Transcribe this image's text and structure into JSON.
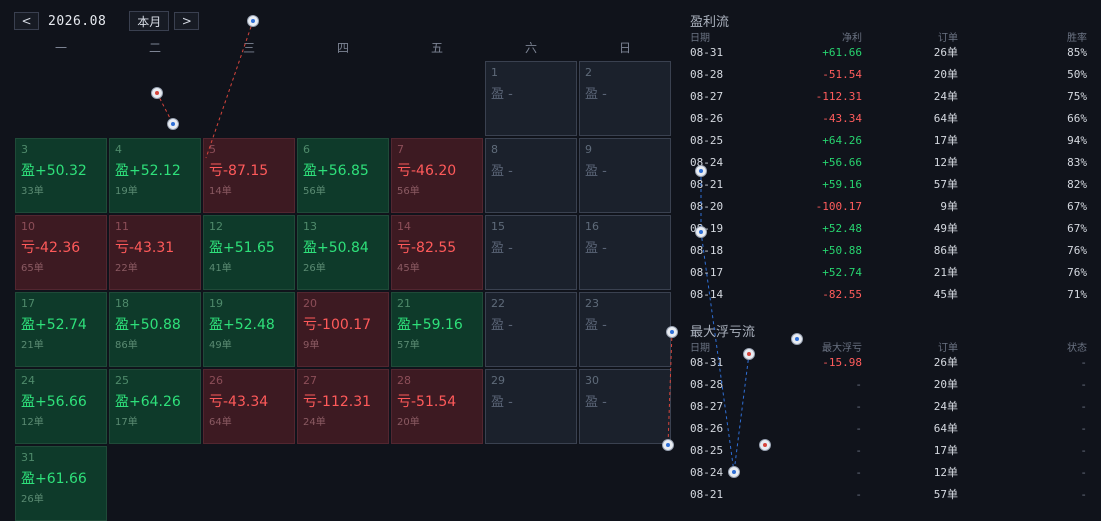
{
  "nav": {
    "prev": "<",
    "next": ">",
    "month": "2026.08",
    "today": "本月"
  },
  "weekdays": [
    "一",
    "二",
    "三",
    "四",
    "五",
    "六",
    "日"
  ],
  "cells": [
    {
      "day": "",
      "pnl": "",
      "orders": "",
      "type": "blank"
    },
    {
      "day": "",
      "pnl": "",
      "orders": "",
      "type": "blank"
    },
    {
      "day": "",
      "pnl": "",
      "orders": "",
      "type": "blank"
    },
    {
      "day": "",
      "pnl": "",
      "orders": "",
      "type": "blank"
    },
    {
      "day": "",
      "pnl": "",
      "orders": "",
      "type": "blank"
    },
    {
      "day": "1",
      "pnl": "盈 -",
      "orders": "",
      "type": "empty"
    },
    {
      "day": "2",
      "pnl": "盈 -",
      "orders": "",
      "type": "empty"
    },
    {
      "day": "3",
      "pnl": "盈+50.32",
      "orders": "33单",
      "type": "win"
    },
    {
      "day": "4",
      "pnl": "盈+52.12",
      "orders": "19单",
      "type": "win"
    },
    {
      "day": "5",
      "pnl": "亏-87.15",
      "orders": "14单",
      "type": "loss"
    },
    {
      "day": "6",
      "pnl": "盈+56.85",
      "orders": "56单",
      "type": "win"
    },
    {
      "day": "7",
      "pnl": "亏-46.20",
      "orders": "56单",
      "type": "loss"
    },
    {
      "day": "8",
      "pnl": "盈 -",
      "orders": "",
      "type": "empty"
    },
    {
      "day": "9",
      "pnl": "盈 -",
      "orders": "",
      "type": "empty"
    },
    {
      "day": "10",
      "pnl": "亏-42.36",
      "orders": "65单",
      "type": "loss"
    },
    {
      "day": "11",
      "pnl": "亏-43.31",
      "orders": "22单",
      "type": "loss"
    },
    {
      "day": "12",
      "pnl": "盈+51.65",
      "orders": "41单",
      "type": "win"
    },
    {
      "day": "13",
      "pnl": "盈+50.84",
      "orders": "26单",
      "type": "win"
    },
    {
      "day": "14",
      "pnl": "亏-82.55",
      "orders": "45单",
      "type": "loss"
    },
    {
      "day": "15",
      "pnl": "盈 -",
      "orders": "",
      "type": "empty"
    },
    {
      "day": "16",
      "pnl": "盈 -",
      "orders": "",
      "type": "empty"
    },
    {
      "day": "17",
      "pnl": "盈+52.74",
      "orders": "21单",
      "type": "win"
    },
    {
      "day": "18",
      "pnl": "盈+50.88",
      "orders": "86单",
      "type": "win"
    },
    {
      "day": "19",
      "pnl": "盈+52.48",
      "orders": "49单",
      "type": "win"
    },
    {
      "day": "20",
      "pnl": "亏-100.17",
      "orders": "9单",
      "type": "loss"
    },
    {
      "day": "21",
      "pnl": "盈+59.16",
      "orders": "57单",
      "type": "win"
    },
    {
      "day": "22",
      "pnl": "盈 -",
      "orders": "",
      "type": "empty"
    },
    {
      "day": "23",
      "pnl": "盈 -",
      "orders": "",
      "type": "empty"
    },
    {
      "day": "24",
      "pnl": "盈+56.66",
      "orders": "12单",
      "type": "win"
    },
    {
      "day": "25",
      "pnl": "盈+64.26",
      "orders": "17单",
      "type": "win"
    },
    {
      "day": "26",
      "pnl": "亏-43.34",
      "orders": "64单",
      "type": "loss"
    },
    {
      "day": "27",
      "pnl": "亏-112.31",
      "orders": "24单",
      "type": "loss"
    },
    {
      "day": "28",
      "pnl": "亏-51.54",
      "orders": "20单",
      "type": "loss"
    },
    {
      "day": "29",
      "pnl": "盈 -",
      "orders": "",
      "type": "empty"
    },
    {
      "day": "30",
      "pnl": "盈 -",
      "orders": "",
      "type": "empty"
    },
    {
      "day": "31",
      "pnl": "盈+61.66",
      "orders": "26单",
      "type": "win"
    }
  ],
  "profit": {
    "title": "盈利流",
    "headers": [
      "日期",
      "净利",
      "订单",
      "胜率"
    ],
    "rows": [
      {
        "date": "08-31",
        "pnl": "+61.66",
        "orders": "26单",
        "rate": "85%",
        "sign": "pos"
      },
      {
        "date": "08-28",
        "pnl": "-51.54",
        "orders": "20单",
        "rate": "50%",
        "sign": "neg"
      },
      {
        "date": "08-27",
        "pnl": "-112.31",
        "orders": "24单",
        "rate": "75%",
        "sign": "neg"
      },
      {
        "date": "08-26",
        "pnl": "-43.34",
        "orders": "64单",
        "rate": "66%",
        "sign": "neg"
      },
      {
        "date": "08-25",
        "pnl": "+64.26",
        "orders": "17单",
        "rate": "94%",
        "sign": "pos"
      },
      {
        "date": "08-24",
        "pnl": "+56.66",
        "orders": "12单",
        "rate": "83%",
        "sign": "pos"
      },
      {
        "date": "08-21",
        "pnl": "+59.16",
        "orders": "57单",
        "rate": "82%",
        "sign": "pos"
      },
      {
        "date": "08-20",
        "pnl": "-100.17",
        "orders": "9单",
        "rate": "67%",
        "sign": "neg"
      },
      {
        "date": "08-19",
        "pnl": "+52.48",
        "orders": "49单",
        "rate": "67%",
        "sign": "pos"
      },
      {
        "date": "08-18",
        "pnl": "+50.88",
        "orders": "86单",
        "rate": "76%",
        "sign": "pos"
      },
      {
        "date": "08-17",
        "pnl": "+52.74",
        "orders": "21单",
        "rate": "76%",
        "sign": "pos"
      },
      {
        "date": "08-14",
        "pnl": "-82.55",
        "orders": "45单",
        "rate": "71%",
        "sign": "neg"
      }
    ]
  },
  "drawdown": {
    "title": "最大浮亏流",
    "headers": [
      "日期",
      "最大浮亏",
      "订单",
      "状态"
    ],
    "rows": [
      {
        "date": "08-31",
        "dd": "-15.98",
        "orders": "26单",
        "status": "-",
        "sign": "neg"
      },
      {
        "date": "08-28",
        "dd": "-",
        "orders": "20单",
        "status": "-",
        "sign": "dim"
      },
      {
        "date": "08-27",
        "dd": "-",
        "orders": "24单",
        "status": "-",
        "sign": "dim"
      },
      {
        "date": "08-26",
        "dd": "-",
        "orders": "64单",
        "status": "-",
        "sign": "dim"
      },
      {
        "date": "08-25",
        "dd": "-",
        "orders": "17单",
        "status": "-",
        "sign": "dim"
      },
      {
        "date": "08-24",
        "dd": "-",
        "orders": "12单",
        "status": "-",
        "sign": "dim"
      },
      {
        "date": "08-21",
        "dd": "-",
        "orders": "57单",
        "status": "-",
        "sign": "dim"
      }
    ]
  },
  "colors": {
    "win": "#0e3a2a",
    "loss": "#3d1a22",
    "positive": "#2ee07a",
    "negative": "#ff5a5a"
  }
}
